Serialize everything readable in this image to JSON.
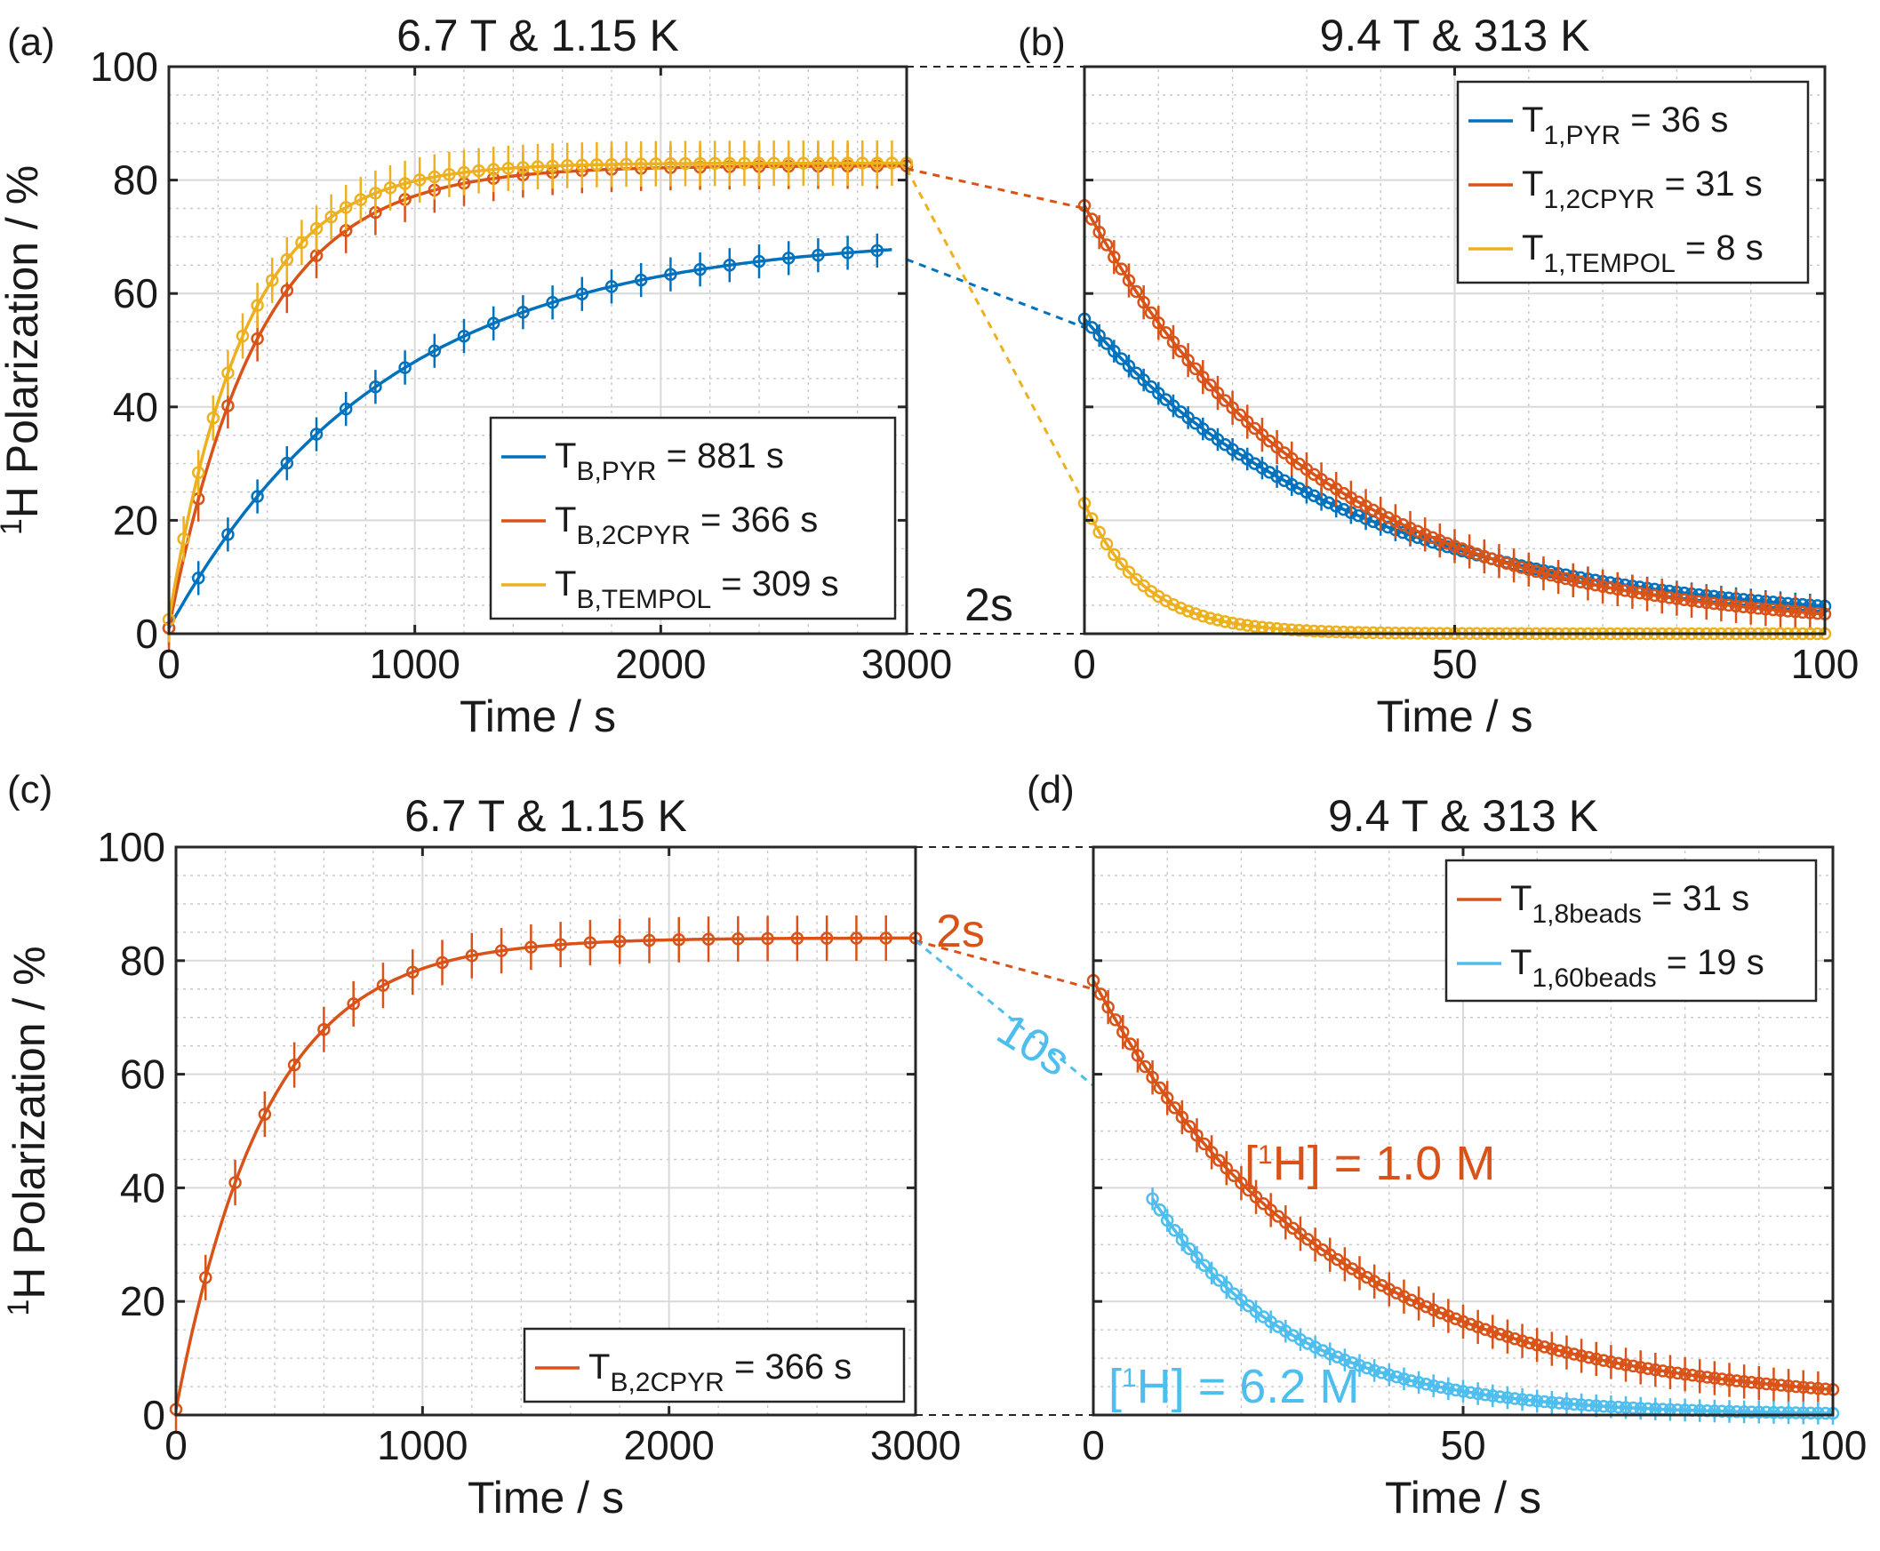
{
  "colors": {
    "blue": "#0072BD",
    "orange": "#D95319",
    "yellow": "#EDB120",
    "lightblue": "#4DBEEE"
  },
  "panel_labels": {
    "a": "(a)",
    "b": "(b)",
    "c": "(c)",
    "d": "(d)"
  },
  "annotations": {
    "gap_top": "2s",
    "gap_bottom_orange": "2s",
    "gap_bottom_blue": "10s",
    "conc_orange": "[1H] = 1.0 M",
    "conc_blue": "[1H] = 6.2 M"
  },
  "chart_data": [
    {
      "panel": "a",
      "type": "line",
      "title": "6.7 T & 1.15 K",
      "xlabel": "Time / s",
      "ylabel": "1H Polarization / %",
      "xlim": [
        0,
        3000
      ],
      "ylim": [
        0,
        100
      ],
      "xticks": [
        0,
        1000,
        2000,
        3000
      ],
      "yticks": [
        0,
        20,
        40,
        60,
        80,
        100
      ],
      "grid": true,
      "legend_position": "bottom-right",
      "series": [
        {
          "name": "T_B,PYR = 881 s",
          "legend_main": "T",
          "legend_sub": "B,PYR",
          "legend_tail": "= 881 s",
          "color": "blue",
          "model": "buildup",
          "p0": 1,
          "pmax": 70.2,
          "tau": 881,
          "sample_every": 120,
          "t_end": 2940,
          "err": 3
        },
        {
          "name": "T_B,2CPYR = 366 s",
          "legend_main": "T",
          "legend_sub": "B,2CPYR",
          "legend_tail": "= 366 s",
          "color": "orange",
          "model": "buildup",
          "p0": 1,
          "pmax": 82.5,
          "tau": 366,
          "sample_every": 120,
          "t_end": 3000,
          "err": 4
        },
        {
          "name": "T_B,TEMPOL = 309 s",
          "legend_main": "T",
          "legend_sub": "B,TEMPOL",
          "legend_tail": "= 309 s",
          "color": "yellow",
          "model": "buildup",
          "p0": 2.5,
          "pmax": 83,
          "tau": 309,
          "sample_every": 60,
          "t_end": 3000,
          "err": 4
        }
      ]
    },
    {
      "panel": "b",
      "type": "line",
      "title": "9.4 T & 313 K",
      "xlabel": "Time / s",
      "ylabel": "",
      "xlim": [
        0,
        100
      ],
      "ylim": [
        0,
        100
      ],
      "xticks": [
        0,
        50,
        100
      ],
      "yticks": [
        0,
        20,
        40,
        60,
        80,
        100
      ],
      "grid": true,
      "legend_position": "top-right",
      "series": [
        {
          "name": "T_1,PYR = 36 s",
          "legend_main": "T",
          "legend_sub": "1,PYR",
          "legend_tail": "= 36 s",
          "color": "blue",
          "model": "decay",
          "a": 54,
          "tau": 36,
          "offset": 1.5,
          "sample_every": 1,
          "t_end": 100,
          "err": 2
        },
        {
          "name": "T_1,2CPYR = 31 s",
          "legend_main": "T",
          "legend_sub": "1,2CPYR",
          "legend_tail": "= 31 s",
          "color": "orange",
          "model": "decay",
          "a": 75,
          "tau": 31,
          "offset": 0.5,
          "sample_every": 1,
          "t_end": 100,
          "err": 3
        },
        {
          "name": "T_1,TEMPOL = 8 s",
          "legend_main": "T",
          "legend_sub": "1,TEMPOL",
          "legend_tail": "= 8 s",
          "color": "yellow",
          "model": "decay",
          "a": 23,
          "tau": 8,
          "offset": 0,
          "sample_every": 1,
          "t_end": 100,
          "err": 0
        }
      ],
      "transfer_lines": [
        {
          "color": "blue",
          "from": 66,
          "to": 54
        },
        {
          "color": "orange",
          "from": 82,
          "to": 75
        },
        {
          "color": "yellow",
          "from": 82,
          "to": 23
        }
      ]
    },
    {
      "panel": "c",
      "type": "line",
      "title": "6.7 T & 1.15 K",
      "xlabel": "Time / s",
      "ylabel": "1H Polarization / %",
      "xlim": [
        0,
        3000
      ],
      "ylim": [
        0,
        100
      ],
      "xticks": [
        0,
        1000,
        2000,
        3000
      ],
      "yticks": [
        0,
        20,
        40,
        60,
        80,
        100
      ],
      "grid": true,
      "legend_position": "bottom-right",
      "series": [
        {
          "name": "T_B,2CPYR = 366 s",
          "legend_main": "T",
          "legend_sub": "B,2CPYR",
          "legend_tail": "= 366 s",
          "color": "orange",
          "model": "buildup",
          "p0": 1,
          "pmax": 84,
          "tau": 366,
          "sample_every": 120,
          "t_end": 3000,
          "err": 4
        }
      ]
    },
    {
      "panel": "d",
      "type": "line",
      "title": "9.4 T & 313 K",
      "xlabel": "Time / s",
      "ylabel": "",
      "xlim": [
        0,
        100
      ],
      "ylim": [
        0,
        100
      ],
      "xticks": [
        0,
        50,
        100
      ],
      "yticks": [
        0,
        20,
        40,
        60,
        80,
        100
      ],
      "grid": true,
      "legend_position": "top-right",
      "series": [
        {
          "name": "T_1,8beads = 31 s",
          "legend_main": "T",
          "legend_sub": "1,8beads",
          "legend_tail": "= 31 s",
          "color": "orange",
          "model": "decay",
          "a": 75,
          "tau": 31,
          "offset": 1.5,
          "t_start": 0,
          "sample_every": 1,
          "t_end": 100,
          "err": 3
        },
        {
          "name": "T_1,60beads = 19 s",
          "legend_main": "T",
          "legend_sub": "1,60beads",
          "legend_tail": "= 19 s",
          "color": "lightblue",
          "model": "decay",
          "a": 58,
          "tau": 19,
          "offset": 0,
          "t_start": 8,
          "sample_every": 1,
          "t_end": 100,
          "err": 2
        }
      ],
      "transfer_lines": [
        {
          "color": "orange",
          "from": 83.5,
          "to": 75
        },
        {
          "color": "lightblue",
          "from": 83.5,
          "to": 58
        }
      ]
    }
  ]
}
